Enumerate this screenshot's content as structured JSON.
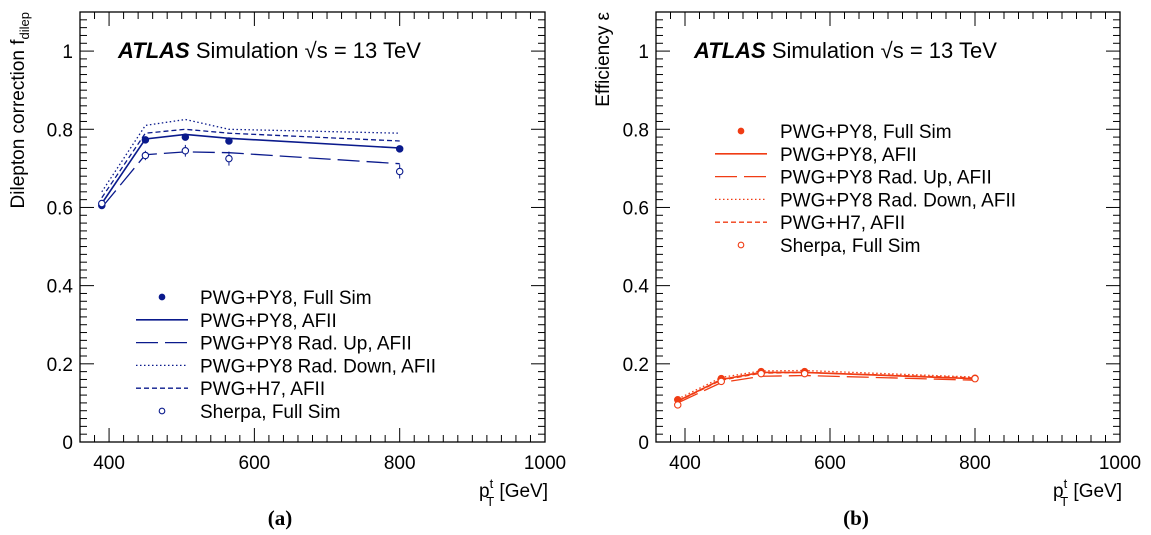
{
  "chart_data": [
    {
      "type": "line",
      "panel_label": "(a)",
      "color": "#0a1a8c",
      "header": {
        "experiment": "ATLAS",
        "word": "Simulation",
        "sqrt": "√s",
        "energy": " = 13 TeV"
      },
      "xlabel": {
        "main": "p",
        "sup": "t",
        "sub": "T",
        "unit": " [GeV]"
      },
      "ylabel": {
        "main": "Dilepton correction f",
        "sub": "dilep"
      },
      "xlim": [
        360,
        1000
      ],
      "ylim": [
        0,
        1.1
      ],
      "xticks": [
        400,
        600,
        800,
        1000
      ],
      "yticks": [
        0,
        0.2,
        0.4,
        0.6,
        0.8,
        1
      ],
      "ytick_labels": [
        "0",
        "0.2",
        "0.4",
        "0.6",
        "0.8",
        "1"
      ],
      "grid": false,
      "legend_placement": "bottom-center",
      "x": [
        390,
        450,
        505,
        565,
        800
      ],
      "series": [
        {
          "name": "PWG+PY8, Full Sim",
          "style": "marker-filled",
          "values": [
            0.605,
            0.773,
            0.78,
            0.77,
            0.75
          ],
          "errors": [
            0.004,
            0.004,
            0.004,
            0.004,
            0.004
          ]
        },
        {
          "name": "PWG+PY8, AFII",
          "style": "solid",
          "values": [
            0.61,
            0.775,
            0.787,
            0.777,
            0.752
          ]
        },
        {
          "name": "PWG+PY8 Rad. Up, AFII",
          "style": "longdash",
          "values": [
            0.6,
            0.735,
            0.742,
            0.74,
            0.712
          ]
        },
        {
          "name": "PWG+PY8 Rad. Down, AFII",
          "style": "dotted",
          "values": [
            0.64,
            0.81,
            0.825,
            0.8,
            0.79
          ]
        },
        {
          "name": "PWG+H7, AFII",
          "style": "dashed",
          "values": [
            0.625,
            0.79,
            0.8,
            0.79,
            0.77
          ]
        },
        {
          "name": "Sherpa, Full Sim",
          "style": "marker-open",
          "values": [
            0.61,
            0.733,
            0.745,
            0.725,
            0.692
          ],
          "errors": [
            0.006,
            0.012,
            0.015,
            0.018,
            0.018
          ]
        }
      ]
    },
    {
      "type": "line",
      "panel_label": "(b)",
      "color": "#f03c14",
      "header": {
        "experiment": "ATLAS",
        "word": "Simulation",
        "sqrt": "√s",
        "energy": " = 13 TeV"
      },
      "xlabel": {
        "main": "p",
        "sup": "t",
        "sub": "T",
        "unit": " [GeV]"
      },
      "ylabel": {
        "main": "Efficiency ε",
        "sub": ""
      },
      "xlim": [
        360,
        1000
      ],
      "ylim": [
        0,
        1.1
      ],
      "xticks": [
        400,
        600,
        800,
        1000
      ],
      "yticks": [
        0,
        0.2,
        0.4,
        0.6,
        0.8,
        1
      ],
      "ytick_labels": [
        "0",
        "0.2",
        "0.4",
        "0.6",
        "0.8",
        "1"
      ],
      "grid": false,
      "legend_placement": "top-center",
      "x": [
        390,
        450,
        505,
        565,
        800
      ],
      "series": [
        {
          "name": "PWG+PY8, Full Sim",
          "style": "marker-filled",
          "values": [
            0.108,
            0.162,
            0.18,
            0.18,
            0.163
          ],
          "errors": [
            0.002,
            0.002,
            0.002,
            0.002,
            0.002
          ]
        },
        {
          "name": "PWG+PY8, AFII",
          "style": "solid",
          "values": [
            0.105,
            0.16,
            0.178,
            0.178,
            0.162
          ]
        },
        {
          "name": "PWG+PY8 Rad. Up, AFII",
          "style": "longdash",
          "values": [
            0.1,
            0.152,
            0.168,
            0.17,
            0.158
          ]
        },
        {
          "name": "PWG+PY8 Rad. Down, AFII",
          "style": "dotted",
          "values": [
            0.11,
            0.165,
            0.182,
            0.183,
            0.166
          ]
        },
        {
          "name": "PWG+H7, AFII",
          "style": "dashed",
          "values": [
            0.104,
            0.158,
            0.176,
            0.178,
            0.164
          ]
        },
        {
          "name": "Sherpa, Full Sim",
          "style": "marker-open",
          "values": [
            0.095,
            0.155,
            0.175,
            0.175,
            0.162
          ],
          "errors": [
            0.002,
            0.002,
            0.002,
            0.002,
            0.002
          ]
        }
      ]
    }
  ]
}
